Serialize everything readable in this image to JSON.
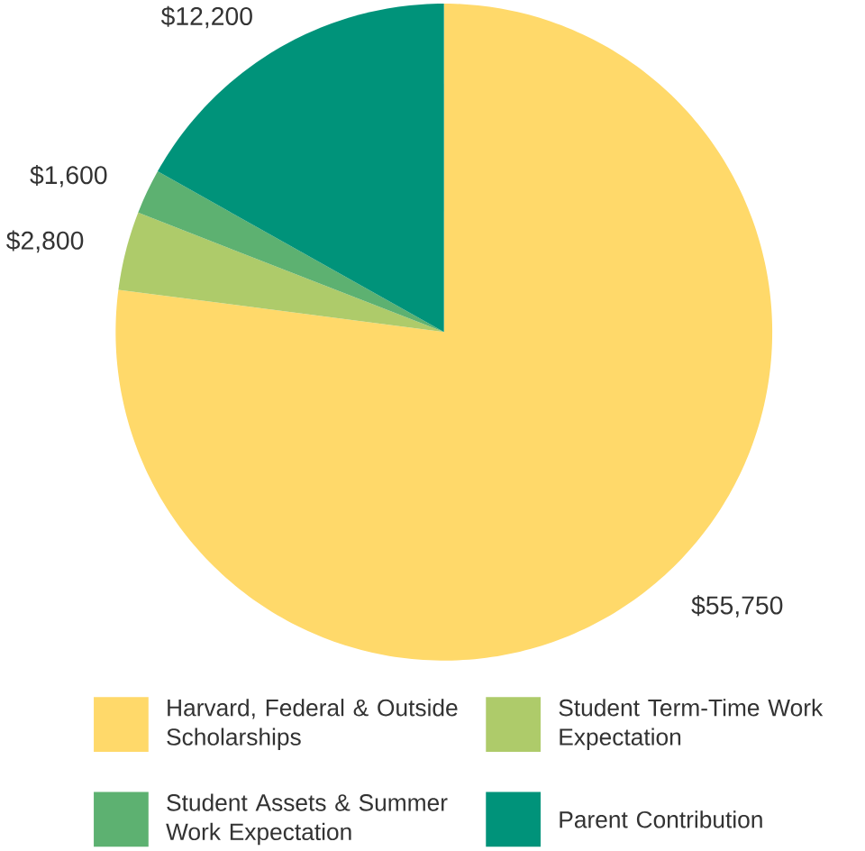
{
  "chart_data": {
    "type": "pie",
    "categories": [
      "Harvard, Federal & Outside Scholarships",
      "Student Term-Time Work Expectation",
      "Student Assets & Summer Work Expectation",
      "Parent Contribution"
    ],
    "values": [
      55750,
      2800,
      1600,
      12200
    ],
    "value_labels": [
      "$55,750",
      "$2,800",
      "$1,600",
      "$12,200"
    ],
    "colors": [
      "#ffd96a",
      "#aecb6a",
      "#5db171",
      "#00937a"
    ],
    "legend": "bottom"
  }
}
